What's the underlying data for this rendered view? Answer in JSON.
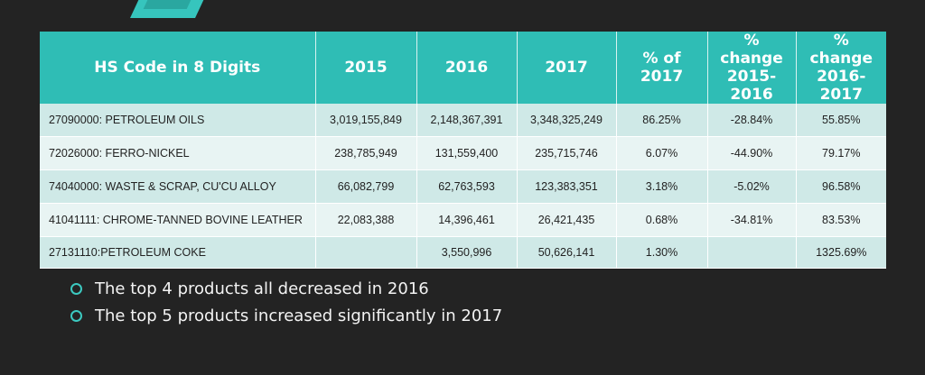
{
  "table": {
    "headers": [
      "HS Code in 8 Digits",
      "2015",
      "2016",
      "2017",
      "% of 2017",
      "% change 2015-2016",
      "% change 2016-2017"
    ],
    "rows": [
      [
        "27090000: PETROLEUM OILS",
        "3,019,155,849",
        "2,148,367,391",
        "3,348,325,249",
        "86.25%",
        "-28.84%",
        "55.85%"
      ],
      [
        "72026000: FERRO-NICKEL",
        "238,785,949",
        "131,559,400",
        "235,715,746",
        "6.07%",
        "-44.90%",
        "79.17%"
      ],
      [
        "74040000: WASTE & SCRAP, CU'CU ALLOY",
        "66,082,799",
        "62,763,593",
        "123,383,351",
        "3.18%",
        "-5.02%",
        "96.58%"
      ],
      [
        "41041111: CHROME-TANNED BOVINE LEATHER",
        "22,083,388",
        "14,396,461",
        "26,421,435",
        "0.68%",
        "-34.81%",
        "83.53%"
      ],
      [
        "27131110:PETROLEUM COKE",
        "",
        "3,550,996",
        "50,626,141",
        "1.30%",
        "",
        "1325.69%"
      ]
    ]
  },
  "bullets": [
    "The top 4 products all decreased in 2016",
    "The top 5 products increased significantly in 2017"
  ],
  "colors": {
    "background": "#232323",
    "header": "#2fbdb5",
    "row_odd": "#cfe9e7",
    "row_even": "#e8f4f3",
    "bullet": "#3cc9c0"
  }
}
